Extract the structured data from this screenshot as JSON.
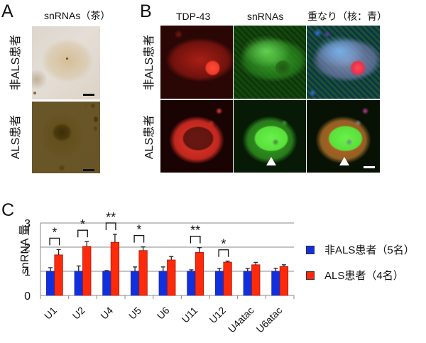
{
  "figure": {
    "panel_a": {
      "letter": "A",
      "column_title": "snRNAs（茶）",
      "rows": [
        {
          "label": "非ALS患者",
          "description": "Non-ALS motor neuron, faint brown snRNA staining, diamond-shaped cell body"
        },
        {
          "label": "ALS患者",
          "description": "ALS motor neuron, dark brown nucleus with strong snRNA staining"
        }
      ]
    },
    "panel_b": {
      "letter": "B",
      "column_titles": [
        "TDP-43",
        "snRNAs",
        "重なり（核：青）"
      ],
      "rows": [
        {
          "label": "非ALS患者"
        },
        {
          "label": "ALS患者"
        }
      ],
      "arrowheads": "white triangles in ALS snRNAs and overlay panels"
    },
    "panel_c": {
      "letter": "C"
    },
    "colors": {
      "non_als": "#1030e0",
      "als": "#ff2a0a",
      "grid": "#a0a0a0",
      "axis": "#888888"
    }
  },
  "chart_data": {
    "type": "bar",
    "title": "",
    "xlabel": "",
    "ylabel": "snRNA 量",
    "ylim": [
      0,
      3
    ],
    "yticks": [
      0,
      1,
      2,
      3
    ],
    "grid": true,
    "legend_position": "right",
    "categories": [
      "U1",
      "U2",
      "U4",
      "U5",
      "U6",
      "U11",
      "U12",
      "U4atac",
      "U6atac"
    ],
    "series": [
      {
        "name": "非ALS患者（5名）",
        "color": "#1030e0",
        "values": [
          1.0,
          1.0,
          1.0,
          1.0,
          1.0,
          1.0,
          1.0,
          1.0,
          1.0
        ],
        "errors": [
          0.15,
          0.22,
          0.03,
          0.18,
          0.18,
          0.06,
          0.12,
          0.12,
          0.12
        ]
      },
      {
        "name": "ALS患者（4名）",
        "color": "#ff2a0a",
        "values": [
          1.68,
          2.03,
          2.2,
          1.86,
          1.47,
          1.78,
          1.38,
          1.27,
          1.2
        ],
        "errors": [
          0.22,
          0.2,
          0.33,
          0.15,
          0.14,
          0.2,
          0.04,
          0.1,
          0.07
        ]
      }
    ],
    "significance": [
      {
        "category": "U1",
        "mark": "*"
      },
      {
        "category": "U2",
        "mark": "*"
      },
      {
        "category": "U4",
        "mark": "**"
      },
      {
        "category": "U5",
        "mark": "*"
      },
      {
        "category": "U11",
        "mark": "**"
      },
      {
        "category": "U12",
        "mark": "*"
      }
    ]
  }
}
